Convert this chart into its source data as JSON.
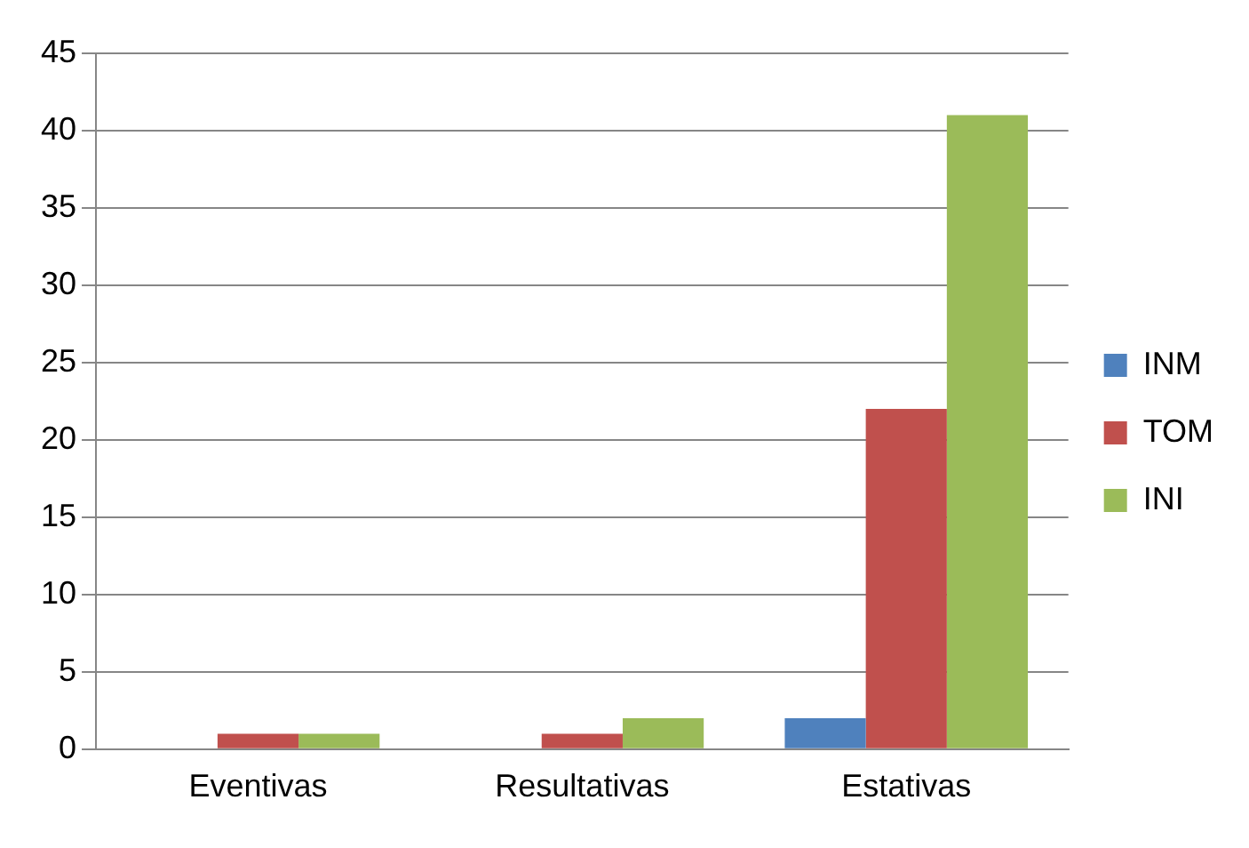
{
  "chart_data": {
    "type": "bar",
    "categories": [
      "Eventivas",
      "Resultativas",
      "Estativas"
    ],
    "series": [
      {
        "name": "INM",
        "color": "#4f81bd",
        "values": [
          0,
          0,
          2
        ]
      },
      {
        "name": "TOM",
        "color": "#c0504d",
        "values": [
          1,
          1,
          22
        ]
      },
      {
        "name": "INI",
        "color": "#9bbb59",
        "values": [
          1,
          2,
          41
        ]
      }
    ],
    "ylim": [
      0,
      45
    ],
    "yticks": [
      0,
      5,
      10,
      15,
      20,
      25,
      30,
      35,
      40,
      45
    ],
    "grid": "y",
    "legend": "right"
  }
}
